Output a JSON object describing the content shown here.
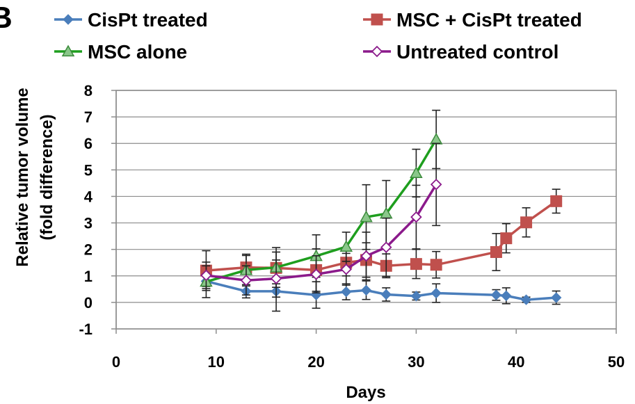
{
  "panel_label": "B",
  "chart_data": {
    "type": "line",
    "title": "",
    "xlabel": "Days",
    "ylabel": [
      "Relative tumor volume",
      "(fold difference)"
    ],
    "xlim": [
      0,
      50
    ],
    "ylim": [
      -1,
      8
    ],
    "xticks": [
      0,
      10,
      20,
      30,
      40,
      50
    ],
    "yticks": [
      -1,
      0,
      1,
      2,
      3,
      4,
      5,
      6,
      7,
      8
    ],
    "grid": "horizontal",
    "legend_placement": "top",
    "series": [
      {
        "name": "CisPt treated",
        "color": "#4a7ebb",
        "marker": "diamond",
        "x": [
          9,
          13,
          16,
          20,
          23,
          25,
          27,
          30,
          32,
          38,
          39,
          41,
          44
        ],
        "y": [
          0.8,
          0.42,
          0.42,
          0.28,
          0.4,
          0.46,
          0.3,
          0.24,
          0.35,
          0.28,
          0.25,
          0.1,
          0.18
        ],
        "err": [
          0.2,
          0.25,
          0.75,
          0.5,
          0.3,
          0.35,
          0.25,
          0.15,
          0.35,
          0.2,
          0.3,
          0.1,
          0.25
        ]
      },
      {
        "name": "MSC + CisPt treated",
        "color": "#c0504d",
        "marker": "square",
        "x": [
          9,
          13,
          16,
          20,
          23,
          25,
          27,
          30,
          32,
          38,
          39,
          41,
          44
        ],
        "y": [
          1.2,
          1.32,
          1.3,
          1.22,
          1.5,
          1.6,
          1.38,
          1.45,
          1.42,
          1.9,
          2.42,
          3.02,
          3.82
        ],
        "err": [
          0.75,
          0.45,
          0.6,
          0.8,
          0.5,
          0.65,
          0.45,
          0.55,
          0.5,
          0.7,
          0.55,
          0.55,
          0.45
        ]
      },
      {
        "name": "MSC alone",
        "color": "#1e9e1e",
        "marker": "triangle",
        "x": [
          9,
          13,
          16,
          20,
          23,
          25,
          27,
          30,
          32
        ],
        "y": [
          0.78,
          1.22,
          1.32,
          1.75,
          2.1,
          3.22,
          3.35,
          4.88,
          6.15
        ],
        "err": [
          0.6,
          0.6,
          0.75,
          0.8,
          0.55,
          1.22,
          1.25,
          0.9,
          1.1
        ]
      },
      {
        "name": "Untreated control",
        "color": "#8b1a8b",
        "marker": "open-diamond",
        "x": [
          9,
          13,
          16,
          20,
          23,
          25,
          27,
          30,
          32
        ],
        "y": [
          1.02,
          0.83,
          0.9,
          1.06,
          1.25,
          1.75,
          2.08,
          3.22,
          4.45
        ],
        "err": [
          0.5,
          0.55,
          0.7,
          0.7,
          0.6,
          0.9,
          1.1,
          1.2,
          1.55
        ]
      }
    ]
  }
}
